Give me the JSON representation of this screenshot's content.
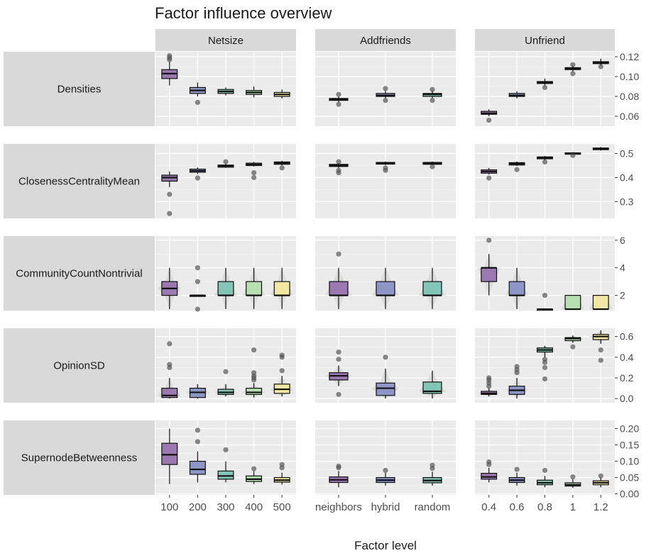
{
  "chart_data": {
    "type": "boxplot",
    "title": "Factor influence overview",
    "xlabel": "Factor level",
    "ylabel": "",
    "grid": true,
    "legend": "none",
    "colors": {
      "panel_bg": "#ebebeb",
      "strip_bg": "#d9d9d9",
      "grid": "#ffffff",
      "axis_text": "#4d4d4d",
      "levels5": [
        "#9b79b0",
        "#8e96c6",
        "#83c5b7",
        "#b8e0b3",
        "#f2e7a3"
      ],
      "levels3": [
        "#9b79b0",
        "#8e96c6",
        "#83c5b7"
      ]
    },
    "facet_cols": [
      {
        "label": "Netsize",
        "levels": [
          "100",
          "200",
          "300",
          "400",
          "500"
        ]
      },
      {
        "label": "Addfriends",
        "levels": [
          "neighbors",
          "hybrid",
          "random"
        ]
      },
      {
        "label": "Unfriend",
        "levels": [
          "0.4",
          "0.6",
          "0.8",
          "1",
          "1.2"
        ]
      }
    ],
    "facet_rows": [
      {
        "label": "Densities",
        "ylim": [
          0.05,
          0.125
        ],
        "ticks": [
          0.06,
          0.08,
          0.1,
          0.12
        ],
        "tick_labels": [
          "0.06",
          "0.08",
          "0.10",
          "0.12"
        ],
        "boxes": [
          [
            {
              "min": 0.091,
              "q1": 0.098,
              "median": 0.103,
              "q3": 0.107,
              "max": 0.115,
              "outliers": [
                0.117,
                0.119,
                0.121
              ]
            },
            {
              "min": 0.08,
              "q1": 0.083,
              "median": 0.086,
              "q3": 0.089,
              "max": 0.094,
              "outliers": [
                0.074
              ]
            },
            {
              "min": 0.081,
              "q1": 0.083,
              "median": 0.085,
              "q3": 0.087,
              "max": 0.089,
              "outliers": []
            },
            {
              "min": 0.079,
              "q1": 0.082,
              "median": 0.084,
              "q3": 0.086,
              "max": 0.09,
              "outliers": []
            },
            {
              "min": 0.078,
              "q1": 0.08,
              "median": 0.082,
              "q3": 0.084,
              "max": 0.087,
              "outliers": []
            }
          ],
          [
            {
              "min": 0.074,
              "q1": 0.076,
              "median": 0.077,
              "q3": 0.078,
              "max": 0.08,
              "outliers": [
                0.072,
                0.082
              ]
            },
            {
              "min": 0.078,
              "q1": 0.08,
              "median": 0.081,
              "q3": 0.083,
              "max": 0.086,
              "outliers": [
                0.076,
                0.088
              ]
            },
            {
              "min": 0.078,
              "q1": 0.08,
              "median": 0.082,
              "q3": 0.083,
              "max": 0.086,
              "outliers": [
                0.076,
                0.087
              ]
            }
          ],
          [
            {
              "min": 0.06,
              "q1": 0.062,
              "median": 0.063,
              "q3": 0.065,
              "max": 0.067,
              "outliers": [
                0.056
              ]
            },
            {
              "min": 0.078,
              "q1": 0.08,
              "median": 0.081,
              "q3": 0.083,
              "max": 0.085,
              "outliers": []
            },
            {
              "min": 0.091,
              "q1": 0.093,
              "median": 0.094,
              "q3": 0.095,
              "max": 0.098,
              "outliers": [
                0.089
              ]
            },
            {
              "min": 0.105,
              "q1": 0.107,
              "median": 0.108,
              "q3": 0.109,
              "max": 0.111,
              "outliers": [
                0.103,
                0.112
              ]
            },
            {
              "min": 0.111,
              "q1": 0.113,
              "median": 0.114,
              "q3": 0.115,
              "max": 0.118,
              "outliers": [
                0.11
              ]
            }
          ]
        ]
      },
      {
        "label": "ClosenessCentralityMean",
        "ylim": [
          0.23,
          0.54
        ],
        "ticks": [
          0.3,
          0.4,
          0.5
        ],
        "tick_labels": [
          "0.3",
          "0.4",
          "0.5"
        ],
        "boxes": [
          [
            {
              "min": 0.36,
              "q1": 0.385,
              "median": 0.4,
              "q3": 0.41,
              "max": 0.425,
              "outliers": [
                0.33,
                0.25
              ]
            },
            {
              "min": 0.415,
              "q1": 0.422,
              "median": 0.428,
              "q3": 0.435,
              "max": 0.442,
              "outliers": [
                0.398
              ]
            },
            {
              "min": 0.44,
              "q1": 0.443,
              "median": 0.448,
              "q3": 0.452,
              "max": 0.458,
              "outliers": [
                0.466
              ]
            },
            {
              "min": 0.445,
              "q1": 0.45,
              "median": 0.455,
              "q3": 0.46,
              "max": 0.465,
              "outliers": [
                0.42,
                0.4
              ]
            },
            {
              "min": 0.45,
              "q1": 0.455,
              "median": 0.46,
              "q3": 0.465,
              "max": 0.47,
              "outliers": [
                0.44
              ]
            }
          ],
          [
            {
              "min": 0.44,
              "q1": 0.446,
              "median": 0.45,
              "q3": 0.455,
              "max": 0.46,
              "outliers": [
                0.42,
                0.43,
                0.466
              ]
            },
            {
              "min": 0.452,
              "q1": 0.456,
              "median": 0.46,
              "q3": 0.463,
              "max": 0.467,
              "outliers": [
                0.43,
                0.44
              ]
            },
            {
              "min": 0.451,
              "q1": 0.455,
              "median": 0.459,
              "q3": 0.463,
              "max": 0.467,
              "outliers": [
                0.445
              ]
            }
          ],
          [
            {
              "min": 0.413,
              "q1": 0.418,
              "median": 0.425,
              "q3": 0.432,
              "max": 0.44,
              "outliers": [
                0.398
              ]
            },
            {
              "min": 0.448,
              "q1": 0.452,
              "median": 0.457,
              "q3": 0.462,
              "max": 0.467,
              "outliers": [
                0.433
              ]
            },
            {
              "min": 0.473,
              "q1": 0.478,
              "median": 0.482,
              "q3": 0.486,
              "max": 0.49,
              "outliers": [
                0.465
              ]
            },
            {
              "min": 0.494,
              "q1": 0.497,
              "median": 0.5,
              "q3": 0.503,
              "max": 0.506,
              "outliers": [
                0.492
              ]
            },
            {
              "min": 0.512,
              "q1": 0.516,
              "median": 0.52,
              "q3": 0.523,
              "max": 0.527,
              "outliers": []
            }
          ]
        ]
      },
      {
        "label": "CommunityCountNontrivial",
        "ylim": [
          0.9,
          6.3
        ],
        "ticks": [
          2,
          4,
          6
        ],
        "tick_labels": [
          "2",
          "4",
          "6"
        ],
        "violin": true,
        "boxes": [
          [
            {
              "min": 1,
              "q1": 2,
              "median": 2.5,
              "q3": 3,
              "max": 4,
              "outliers": []
            },
            {
              "min": 2,
              "q1": 2,
              "median": 2,
              "q3": 2,
              "max": 2,
              "outliers": [
                1,
                3,
                4
              ]
            },
            {
              "min": 1,
              "q1": 2,
              "median": 2,
              "q3": 3,
              "max": 4,
              "outliers": []
            },
            {
              "min": 1,
              "q1": 2,
              "median": 2,
              "q3": 3,
              "max": 4,
              "outliers": []
            },
            {
              "min": 1,
              "q1": 2,
              "median": 2,
              "q3": 3,
              "max": 4,
              "outliers": []
            }
          ],
          [
            {
              "min": 1,
              "q1": 2,
              "median": 2,
              "q3": 3,
              "max": 4,
              "outliers": [
                5
              ]
            },
            {
              "min": 1,
              "q1": 2,
              "median": 2,
              "q3": 3,
              "max": 4,
              "outliers": []
            },
            {
              "min": 1,
              "q1": 2,
              "median": 2,
              "q3": 3,
              "max": 4,
              "outliers": []
            }
          ],
          [
            {
              "min": 2,
              "q1": 3,
              "median": 4,
              "q3": 4,
              "max": 5,
              "outliers": [
                6
              ]
            },
            {
              "min": 1,
              "q1": 2,
              "median": 2,
              "q3": 3,
              "max": 4,
              "outliers": []
            },
            {
              "min": 1,
              "q1": 1,
              "median": 1,
              "q3": 1,
              "max": 1,
              "outliers": [
                2
              ]
            },
            {
              "min": 1,
              "q1": 1,
              "median": 1,
              "q3": 2,
              "max": 2,
              "outliers": []
            },
            {
              "min": 1,
              "q1": 1,
              "median": 1,
              "q3": 2,
              "max": 2,
              "outliers": []
            }
          ]
        ]
      },
      {
        "label": "OpinionSD",
        "ylim": [
          -0.04,
          0.68
        ],
        "ticks": [
          0.0,
          0.2,
          0.4,
          0.6
        ],
        "tick_labels": [
          "0.0",
          "0.2",
          "0.4",
          "0.6"
        ],
        "violin": true,
        "boxes": [
          [
            {
              "min": 0.0,
              "q1": 0.01,
              "median": 0.03,
              "q3": 0.1,
              "max": 0.2,
              "outliers": [
                0.3,
                0.33,
                0.53
              ]
            },
            {
              "min": 0.0,
              "q1": 0.01,
              "median": 0.06,
              "q3": 0.1,
              "max": 0.14,
              "outliers": []
            },
            {
              "min": 0.02,
              "q1": 0.04,
              "median": 0.06,
              "q3": 0.09,
              "max": 0.14,
              "outliers": [
                0.26
              ]
            },
            {
              "min": 0.01,
              "q1": 0.04,
              "median": 0.06,
              "q3": 0.1,
              "max": 0.15,
              "outliers": [
                0.18,
                0.2,
                0.22,
                0.25,
                0.47
              ]
            },
            {
              "min": 0.02,
              "q1": 0.05,
              "median": 0.09,
              "q3": 0.14,
              "max": 0.22,
              "outliers": [
                0.27,
                0.4,
                0.42
              ]
            }
          ],
          [
            {
              "min": 0.12,
              "q1": 0.18,
              "median": 0.22,
              "q3": 0.25,
              "max": 0.32,
              "outliers": [
                0.04,
                0.38,
                0.45
              ]
            },
            {
              "min": 0.0,
              "q1": 0.03,
              "median": 0.1,
              "q3": 0.15,
              "max": 0.29,
              "outliers": [
                0.4
              ]
            },
            {
              "min": 0.0,
              "q1": 0.05,
              "median": 0.07,
              "q3": 0.16,
              "max": 0.27,
              "outliers": []
            }
          ],
          [
            {
              "min": 0.02,
              "q1": 0.04,
              "median": 0.05,
              "q3": 0.07,
              "max": 0.1,
              "outliers": [
                0.12,
                0.15,
                0.18,
                0.2
              ]
            },
            {
              "min": 0.0,
              "q1": 0.04,
              "median": 0.08,
              "q3": 0.12,
              "max": 0.2,
              "outliers": [
                0.25,
                0.28,
                0.31
              ]
            },
            {
              "min": 0.4,
              "q1": 0.45,
              "median": 0.47,
              "q3": 0.49,
              "max": 0.51,
              "outliers": [
                0.19,
                0.3,
                0.35,
                0.38
              ]
            },
            {
              "min": 0.54,
              "q1": 0.56,
              "median": 0.58,
              "q3": 0.59,
              "max": 0.61,
              "outliers": [
                0.5
              ]
            },
            {
              "min": 0.53,
              "q1": 0.57,
              "median": 0.6,
              "q3": 0.62,
              "max": 0.66,
              "outliers": [
                0.37,
                0.47
              ]
            }
          ]
        ]
      },
      {
        "label": "SupernodeBetweenness",
        "ylim": [
          -0.003,
          0.225
        ],
        "ticks": [
          0.0,
          0.05,
          0.1,
          0.15,
          0.2
        ],
        "tick_labels": [
          "0.00",
          "0.05",
          "0.10",
          "0.15",
          "0.20"
        ],
        "boxes": [
          [
            {
              "min": 0.03,
              "q1": 0.09,
              "median": 0.12,
              "q3": 0.155,
              "max": 0.2,
              "outliers": []
            },
            {
              "min": 0.035,
              "q1": 0.06,
              "median": 0.075,
              "q3": 0.1,
              "max": 0.13,
              "outliers": [
                0.16,
                0.195
              ]
            },
            {
              "min": 0.035,
              "q1": 0.045,
              "median": 0.055,
              "q3": 0.07,
              "max": 0.1,
              "outliers": [
                0.135
              ]
            },
            {
              "min": 0.03,
              "q1": 0.038,
              "median": 0.045,
              "q3": 0.055,
              "max": 0.07,
              "outliers": [
                0.077
              ]
            },
            {
              "min": 0.028,
              "q1": 0.036,
              "median": 0.042,
              "q3": 0.05,
              "max": 0.065,
              "outliers": [
                0.08,
                0.09
              ]
            }
          ],
          [
            {
              "min": 0.02,
              "q1": 0.035,
              "median": 0.043,
              "q3": 0.052,
              "max": 0.07,
              "outliers": [
                0.08,
                0.085
              ]
            },
            {
              "min": 0.025,
              "q1": 0.035,
              "median": 0.042,
              "q3": 0.05,
              "max": 0.065,
              "outliers": [
                0.072
              ]
            },
            {
              "min": 0.025,
              "q1": 0.034,
              "median": 0.041,
              "q3": 0.05,
              "max": 0.068,
              "outliers": [
                0.078,
                0.088
              ]
            }
          ],
          [
            {
              "min": 0.035,
              "q1": 0.045,
              "median": 0.052,
              "q3": 0.063,
              "max": 0.08,
              "outliers": [
                0.09,
                0.098
              ]
            },
            {
              "min": 0.025,
              "q1": 0.035,
              "median": 0.042,
              "q3": 0.05,
              "max": 0.065,
              "outliers": [
                0.075
              ]
            },
            {
              "min": 0.02,
              "q1": 0.028,
              "median": 0.034,
              "q3": 0.042,
              "max": 0.055,
              "outliers": [
                0.072
              ]
            },
            {
              "min": 0.018,
              "q1": 0.024,
              "median": 0.028,
              "q3": 0.034,
              "max": 0.045,
              "outliers": [
                0.052
              ]
            },
            {
              "min": 0.02,
              "q1": 0.028,
              "median": 0.034,
              "q3": 0.04,
              "max": 0.05,
              "outliers": [
                0.055
              ]
            }
          ]
        ]
      }
    ]
  }
}
